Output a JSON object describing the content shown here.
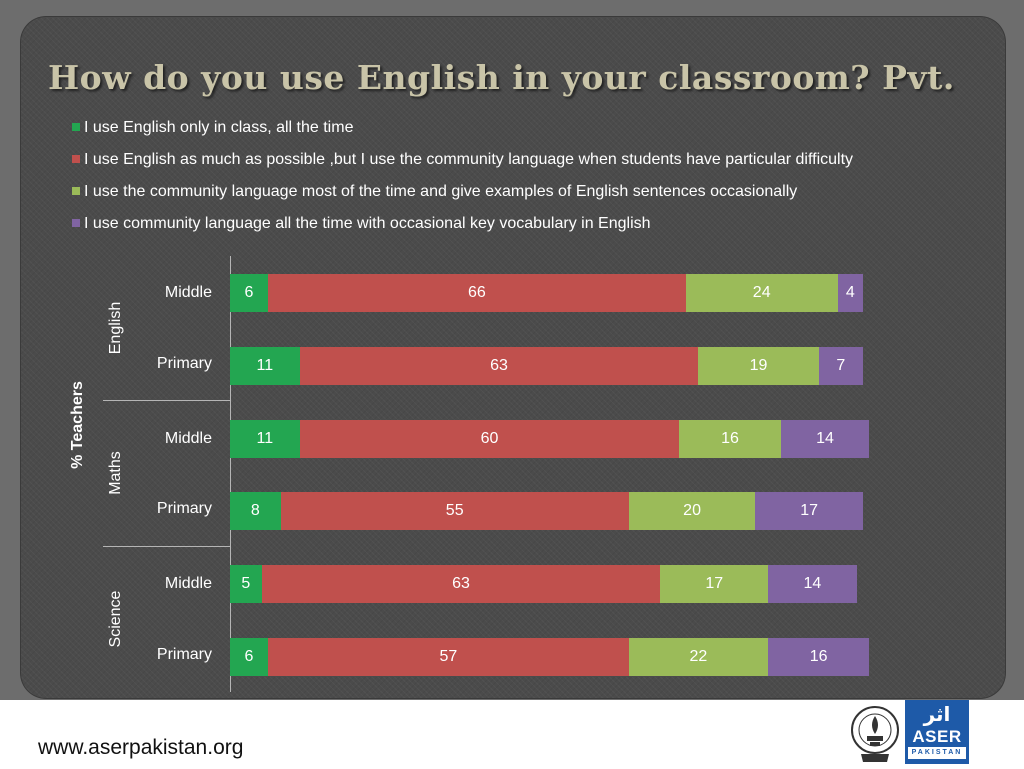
{
  "title": "How do you use English in your classroom? Pvt.",
  "footer_url": "www.aserpakistan.org",
  "logos": {
    "aser_urdu": "اثر",
    "aser_main": "ASER",
    "aser_sub": "PAKISTAN"
  },
  "colors": {
    "only_english": "#23a651",
    "as_much_as_possible": "#c0504d",
    "community_most": "#9bbb59",
    "community_all": "#8064a2"
  },
  "chart_data": {
    "type": "bar",
    "orientation": "horizontal",
    "stacked": true,
    "title": "How do you use English in your classroom? Pvt.",
    "ylabel": "% Teachers",
    "legend_position": "top",
    "grid": false,
    "series": [
      {
        "name": "I use English only in class, all the time",
        "color": "#23a651"
      },
      {
        "name": "I use English as much as possible ,but I use the community language when students have particular difficulty",
        "color": "#c0504d"
      },
      {
        "name": "I use the community language most of the time and give examples of English sentences occasionally",
        "color": "#9bbb59"
      },
      {
        "name": "I use community language all the time with occasional key vocabulary in English",
        "color": "#8064a2"
      }
    ],
    "groups": [
      {
        "subject": "English",
        "rows": [
          {
            "level": "Middle",
            "values": [
              6,
              66,
              24,
              4
            ]
          },
          {
            "level": "Primary",
            "values": [
              11,
              63,
              19,
              7
            ]
          }
        ]
      },
      {
        "subject": "Maths",
        "rows": [
          {
            "level": "Middle",
            "values": [
              11,
              60,
              16,
              14
            ]
          },
          {
            "level": "Primary",
            "values": [
              8,
              55,
              20,
              17
            ]
          }
        ]
      },
      {
        "subject": "Science",
        "rows": [
          {
            "level": "Middle",
            "values": [
              5,
              63,
              17,
              14
            ]
          },
          {
            "level": "Primary",
            "values": [
              6,
              57,
              22,
              16
            ]
          }
        ]
      }
    ]
  }
}
